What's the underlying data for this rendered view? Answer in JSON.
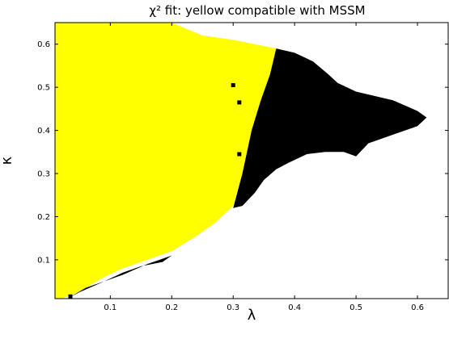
{
  "chart_data": {
    "type": "heatmap",
    "title": "χ² fit: yellow compatible with MSSM",
    "xlabel": "λ",
    "ylabel": "κ",
    "xlim": [
      0.01,
      0.65
    ],
    "ylim": [
      0.01,
      0.65
    ],
    "x_ticks": [
      "0.1",
      "0.2",
      "0.3",
      "0.4",
      "0.5",
      "0.6"
    ],
    "y_ticks": [
      "0.1",
      "0.2",
      "0.3",
      "0.4",
      "0.5",
      "0.6"
    ],
    "grid": false,
    "legend": "none",
    "colors": {
      "compatible": "#ffff00",
      "excluded": "#000000",
      "background": "#ffffff"
    },
    "regions": [
      {
        "name": "compatible",
        "color": "#ffff00",
        "boundary": [
          [
            0.01,
            0.65
          ],
          [
            0.2,
            0.65
          ],
          [
            0.25,
            0.62
          ],
          [
            0.3,
            0.61
          ],
          [
            0.37,
            0.59
          ],
          [
            0.36,
            0.53
          ],
          [
            0.345,
            0.47
          ],
          [
            0.33,
            0.4
          ],
          [
            0.315,
            0.3
          ],
          [
            0.3,
            0.225
          ],
          [
            0.27,
            0.185
          ],
          [
            0.24,
            0.155
          ],
          [
            0.2,
            0.12
          ],
          [
            0.16,
            0.1
          ],
          [
            0.12,
            0.08
          ],
          [
            0.09,
            0.06
          ],
          [
            0.06,
            0.035
          ],
          [
            0.04,
            0.02
          ],
          [
            0.02,
            0.01
          ],
          [
            0.01,
            0.01
          ]
        ]
      },
      {
        "name": "excluded",
        "color": "#000000",
        "boundary": [
          [
            0.37,
            0.59
          ],
          [
            0.4,
            0.58
          ],
          [
            0.43,
            0.56
          ],
          [
            0.455,
            0.53
          ],
          [
            0.47,
            0.51
          ],
          [
            0.5,
            0.49
          ],
          [
            0.56,
            0.47
          ],
          [
            0.6,
            0.445
          ],
          [
            0.615,
            0.43
          ],
          [
            0.6,
            0.41
          ],
          [
            0.56,
            0.39
          ],
          [
            0.52,
            0.37
          ],
          [
            0.5,
            0.34
          ],
          [
            0.48,
            0.35
          ],
          [
            0.45,
            0.35
          ],
          [
            0.42,
            0.345
          ],
          [
            0.39,
            0.325
          ],
          [
            0.37,
            0.31
          ],
          [
            0.35,
            0.285
          ],
          [
            0.335,
            0.255
          ],
          [
            0.315,
            0.225
          ],
          [
            0.3,
            0.22
          ],
          [
            0.315,
            0.3
          ],
          [
            0.33,
            0.4
          ],
          [
            0.345,
            0.47
          ],
          [
            0.36,
            0.53
          ]
        ]
      },
      {
        "name": "excluded",
        "color": "#000000",
        "boundary": [
          [
            0.03,
            0.01
          ],
          [
            0.06,
            0.035
          ],
          [
            0.12,
            0.065
          ],
          [
            0.16,
            0.09
          ],
          [
            0.2,
            0.11
          ],
          [
            0.185,
            0.095
          ],
          [
            0.15,
            0.085
          ],
          [
            0.12,
            0.07
          ],
          [
            0.09,
            0.05
          ],
          [
            0.05,
            0.025
          ]
        ]
      }
    ],
    "points": [
      {
        "x": 0.3,
        "y": 0.505,
        "color": "#000000"
      },
      {
        "x": 0.31,
        "y": 0.345,
        "color": "#000000"
      },
      {
        "x": 0.31,
        "y": 0.465,
        "color": "#000000"
      },
      {
        "x": 0.035,
        "y": 0.015,
        "color": "#000000"
      }
    ]
  }
}
